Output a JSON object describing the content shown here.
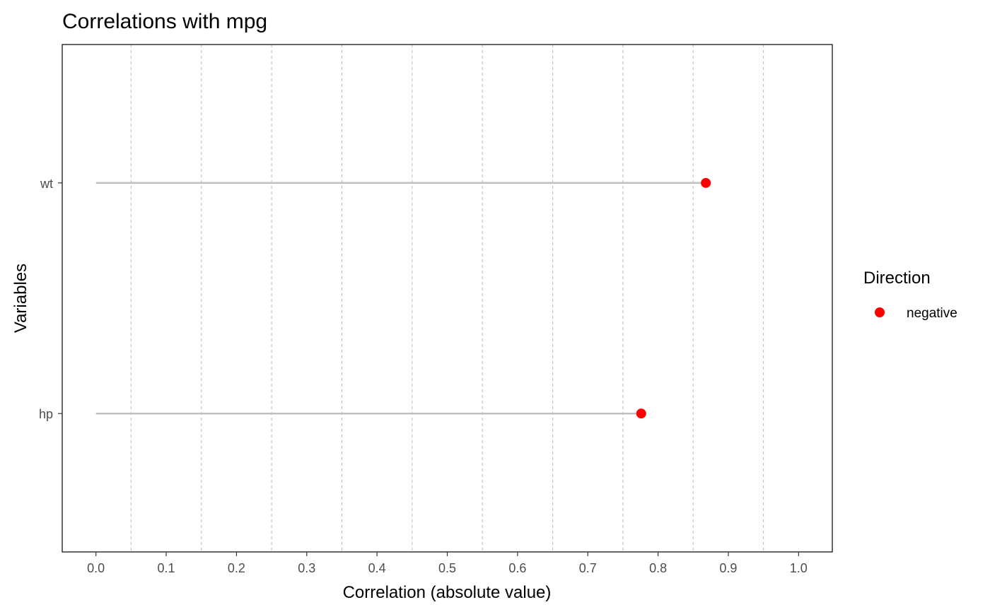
{
  "chart_data": {
    "type": "lollipop",
    "title": "Correlations with mpg",
    "xlabel": "Correlation (absolute value)",
    "ylabel": "Variables",
    "xlim": [
      -0.048,
      1.048
    ],
    "x_ticks": [
      0.0,
      0.1,
      0.2,
      0.3,
      0.4,
      0.5,
      0.6,
      0.7,
      0.8,
      0.9,
      1.0
    ],
    "x_tick_labels": [
      "0.0",
      "0.1",
      "0.2",
      "0.3",
      "0.4",
      "0.5",
      "0.6",
      "0.7",
      "0.8",
      "0.9",
      "1.0"
    ],
    "x_gridlines_dashed": [
      0.05,
      0.15,
      0.25,
      0.35,
      0.45,
      0.55,
      0.65,
      0.75,
      0.85,
      0.95
    ],
    "categories": [
      "wt",
      "hp"
    ],
    "values": [
      0.868,
      0.776
    ],
    "direction": [
      "negative",
      "negative"
    ],
    "legend": {
      "title": "Direction",
      "placement": "right",
      "entries": [
        {
          "label": "negative",
          "color": "#ff0000"
        }
      ]
    },
    "colors": {
      "point": "#ff0000",
      "segment": "#bebebe",
      "grid": "#bebebe"
    }
  }
}
